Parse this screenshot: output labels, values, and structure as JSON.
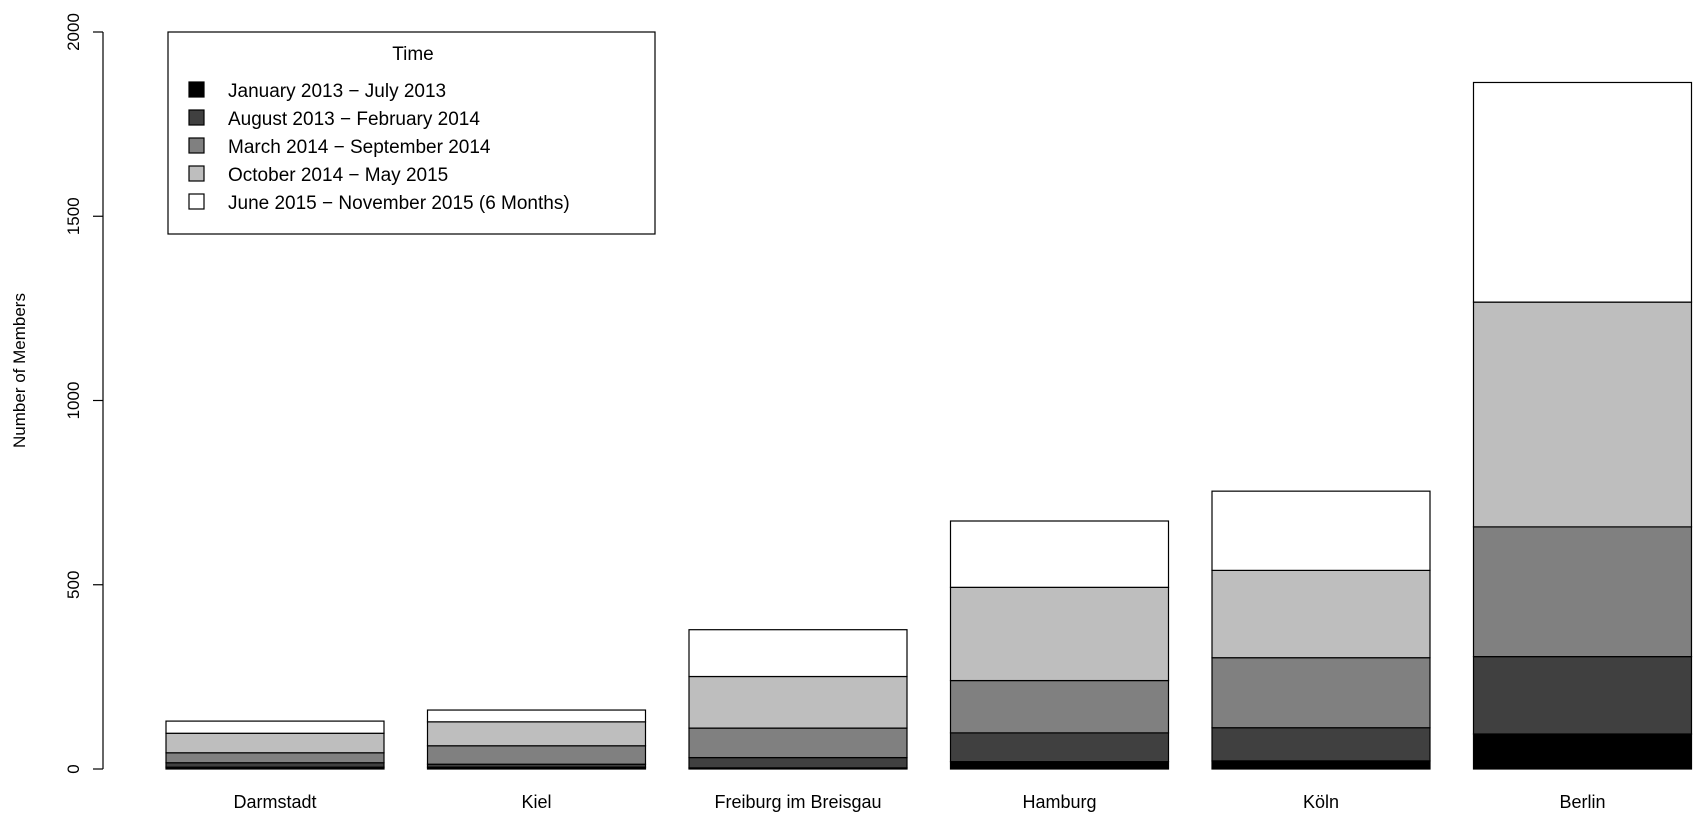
{
  "chart_data": {
    "type": "bar",
    "stacked": true,
    "categories": [
      "Darmstadt",
      "Kiel",
      "Freiburg im Breisgau",
      "Hamburg",
      "Köln",
      "Berlin"
    ],
    "series": [
      {
        "name": "January 2013 − July 2013",
        "color": "#000000",
        "values": [
          5,
          5,
          3,
          20,
          22,
          95
        ]
      },
      {
        "name": "August 2013 − February 2014",
        "color": "#404040",
        "values": [
          12,
          8,
          28,
          78,
          90,
          210
        ]
      },
      {
        "name": "March 2014 − September 2014",
        "color": "#808080",
        "values": [
          27,
          50,
          80,
          142,
          190,
          352
        ]
      },
      {
        "name": "October 2014 − May 2015",
        "color": "#bebebe",
        "values": [
          53,
          65,
          140,
          253,
          237,
          610
        ]
      },
      {
        "name": "June 2015 − November 2015 (6 Months)",
        "color": "#ffffff",
        "values": [
          33,
          32,
          127,
          180,
          215,
          596
        ]
      }
    ],
    "title": "",
    "xlabel": "",
    "ylabel": "Number of Members",
    "ylim": [
      0,
      2000
    ],
    "yticks": [
      "0",
      "500",
      "1000",
      "1500",
      "2000"
    ],
    "yticks_values": [
      0,
      500,
      1000,
      1500,
      2000
    ],
    "legend": {
      "title": "Time",
      "position": "top-left"
    },
    "grid": false
  }
}
